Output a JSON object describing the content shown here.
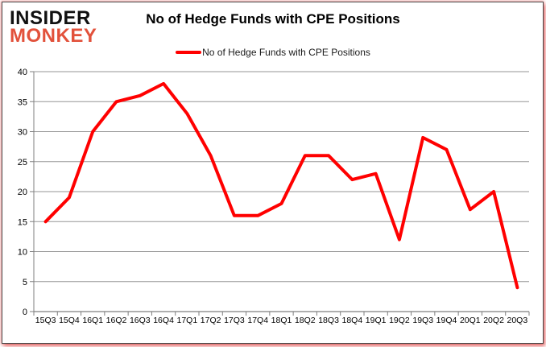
{
  "logo": {
    "line1": "INSIDER",
    "line2": "MONKEY"
  },
  "title": "No of Hedge Funds with CPE Positions",
  "legend": {
    "label": "No of Hedge Funds with CPE Positions"
  },
  "colors": {
    "line": "#ff0000",
    "logo_accent": "#e2513b",
    "grid": "#969696",
    "axis": "#7f7f7f",
    "text": "#000000",
    "frame_glow": "#d72828"
  },
  "chart_data": {
    "type": "line",
    "title": "No of Hedge Funds with CPE Positions",
    "categories": [
      "15Q3",
      "15Q4",
      "16Q1",
      "16Q2",
      "16Q3",
      "16Q4",
      "17Q1",
      "17Q2",
      "17Q3",
      "17Q4",
      "18Q1",
      "18Q2",
      "18Q3",
      "18Q4",
      "19Q1",
      "19Q2",
      "19Q3",
      "19Q4",
      "20Q1",
      "20Q2",
      "20Q3"
    ],
    "series": [
      {
        "name": "No of Hedge Funds with CPE Positions",
        "color": "#ff0000",
        "values": [
          15,
          19,
          30,
          35,
          36,
          38,
          33,
          26,
          16,
          16,
          18,
          26,
          26,
          22,
          23,
          12,
          29,
          27,
          17,
          20,
          4
        ]
      }
    ],
    "xlabel": "",
    "ylabel": "",
    "ylim": [
      0,
      40
    ],
    "ytick_step": 5,
    "grid": true,
    "legend_position": "top-center"
  }
}
